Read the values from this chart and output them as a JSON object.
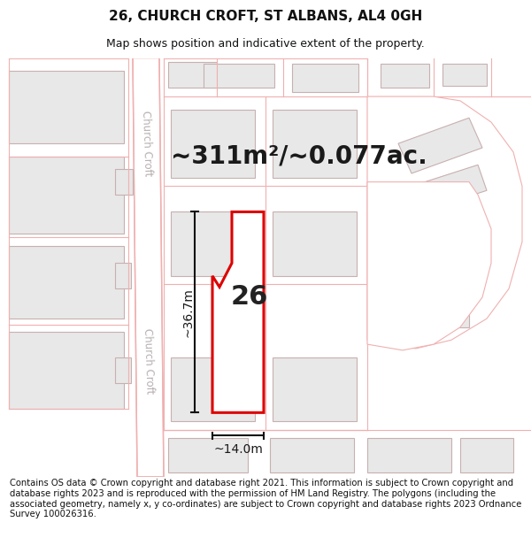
{
  "title": "26, CHURCH CROFT, ST ALBANS, AL4 0GH",
  "subtitle": "Map shows position and indicative extent of the property.",
  "footer": "Contains OS data © Crown copyright and database right 2021. This information is subject to Crown copyright and database rights 2023 and is reproduced with the permission of HM Land Registry. The polygons (including the associated geometry, namely x, y co-ordinates) are subject to Crown copyright and database rights 2023 Ordnance Survey 100026316.",
  "area_label": "~311m²/~0.077ac.",
  "number_label": "26",
  "width_label": "~14.0m",
  "height_label": "~36.7m",
  "bg_color": "#ffffff",
  "map_bg": "#ffffff",
  "road_color": "#f5c8c8",
  "building_color": "#e8e8e8",
  "building_edge": "#c8b0b0",
  "highlight_color": "#dd0000",
  "highlight_fill": "#ffffff",
  "parcel_color": "#f0b0b0",
  "title_fontsize": 11,
  "subtitle_fontsize": 9,
  "footer_fontsize": 7.2,
  "area_fontsize": 20,
  "number_fontsize": 22,
  "dim_fontsize": 10,
  "road_label_fontsize": 8.5,
  "road_label_color": "#b8b0b0"
}
